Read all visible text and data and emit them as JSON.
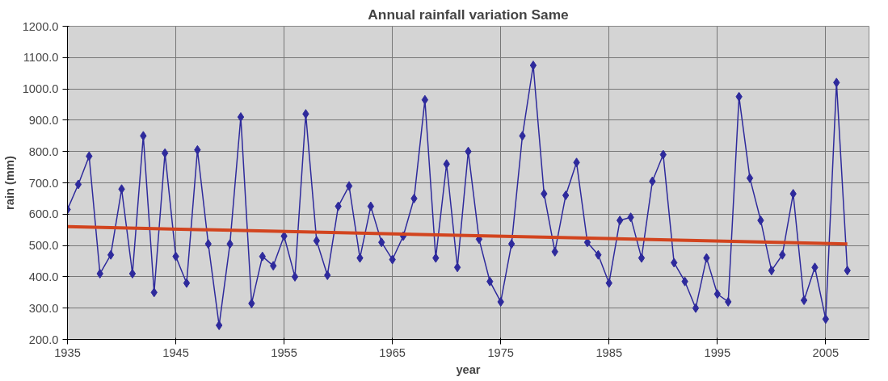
{
  "chart_data": {
    "type": "line",
    "title": "Annual rainfall variation Same",
    "xlabel": "year",
    "ylabel": "rain (mm)",
    "x": [
      1935,
      1936,
      1937,
      1938,
      1939,
      1940,
      1941,
      1942,
      1943,
      1944,
      1945,
      1946,
      1947,
      1948,
      1949,
      1950,
      1951,
      1952,
      1953,
      1954,
      1955,
      1956,
      1957,
      1958,
      1959,
      1960,
      1961,
      1962,
      1963,
      1964,
      1965,
      1966,
      1967,
      1968,
      1969,
      1970,
      1971,
      1972,
      1973,
      1974,
      1975,
      1976,
      1977,
      1978,
      1979,
      1980,
      1981,
      1982,
      1983,
      1984,
      1985,
      1986,
      1987,
      1988,
      1989,
      1990,
      1991,
      1992,
      1993,
      1994,
      1995,
      1996,
      1997,
      1998,
      1999,
      2000,
      2001,
      2002,
      2003,
      2004,
      2005,
      2006,
      2007
    ],
    "series": [
      {
        "color": "#2e2a9c",
        "marker": "diamond",
        "values": [
          615,
          695,
          785,
          410,
          470,
          680,
          410,
          850,
          350,
          795,
          465,
          380,
          805,
          505,
          245,
          505,
          910,
          315,
          465,
          435,
          530,
          400,
          920,
          515,
          405,
          625,
          690,
          460,
          625,
          510,
          455,
          530,
          650,
          965,
          460,
          760,
          430,
          800,
          520,
          385,
          320,
          505,
          850,
          1075,
          665,
          480,
          660,
          765,
          510,
          470,
          380,
          580,
          590,
          460,
          705,
          790,
          445,
          385,
          300,
          460,
          345,
          320,
          975,
          715,
          580,
          420,
          470,
          665,
          325,
          430,
          265,
          1020,
          420
        ]
      },
      {
        "type": "line",
        "color": "#d2441e",
        "marker": "none",
        "x": [
          1935,
          2007
        ],
        "values": [
          560,
          505
        ]
      }
    ],
    "xlim": [
      1935,
      2009
    ],
    "xticks": [
      1935,
      1945,
      1955,
      1965,
      1975,
      1985,
      1995,
      2005
    ],
    "ylim": [
      200,
      1200
    ],
    "yticks": [
      {
        "value": 200,
        "label": "200.0"
      },
      {
        "value": 300,
        "label": "300.0"
      },
      {
        "value": 400,
        "label": "400.0"
      },
      {
        "value": 500,
        "label": "500.0"
      },
      {
        "value": 600,
        "label": "600.0"
      },
      {
        "value": 700,
        "label": "700.0"
      },
      {
        "value": 800,
        "label": "800.0"
      },
      {
        "value": 900,
        "label": "900.0"
      },
      {
        "value": 1000,
        "label": "1000.0"
      },
      {
        "value": 1100,
        "label": "1100.0"
      },
      {
        "value": 1200,
        "label": "1200.0"
      }
    ],
    "grid": true
  }
}
